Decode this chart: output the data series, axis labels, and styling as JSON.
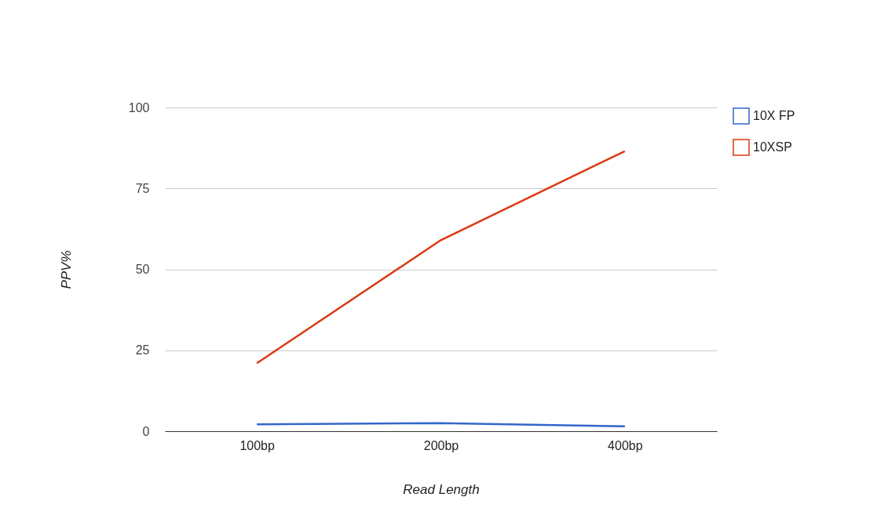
{
  "chart_data": {
    "type": "line",
    "xlabel": "Read Length",
    "ylabel": "PPV%",
    "categories": [
      "100bp",
      "200bp",
      "400bp"
    ],
    "series": [
      {
        "name": "10X FP",
        "color": "#3366cc",
        "values": [
          2.1,
          2.5,
          1.5
        ]
      },
      {
        "name": "10XSP",
        "color": "#dc3912",
        "values": [
          21,
          59,
          86.5
        ]
      }
    ],
    "ylim": [
      0,
      100
    ],
    "yticks": [
      0,
      25,
      50,
      75,
      100
    ],
    "grid": "y",
    "legend": "top right",
    "marker": "none",
    "line_style": "solid"
  }
}
